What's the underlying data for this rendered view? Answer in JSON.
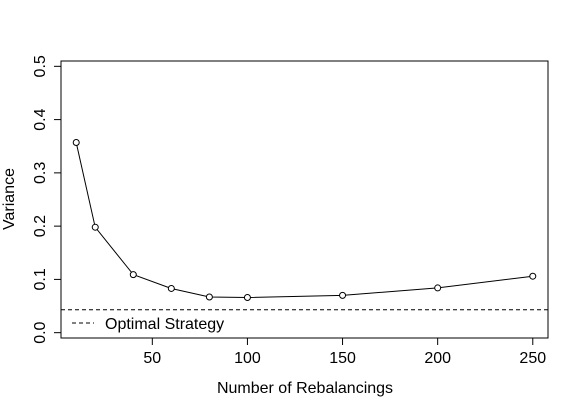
{
  "chart_data": {
    "type": "line",
    "title": "",
    "xlabel": "Number of Rebalancings",
    "ylabel": "Variance",
    "xlim": [
      2,
      258
    ],
    "ylim": [
      -0.01,
      0.51
    ],
    "x_ticks": [
      50,
      100,
      150,
      200,
      250
    ],
    "y_ticks": [
      0.0,
      0.1,
      0.2,
      0.3,
      0.4,
      0.5
    ],
    "x_tick_labels": [
      "50",
      "100",
      "150",
      "200",
      "250"
    ],
    "y_tick_labels": [
      "0.0",
      "0.1",
      "0.2",
      "0.3",
      "0.4",
      "0.5"
    ],
    "grid": false,
    "legend_position": "bottom-left",
    "series": [
      {
        "style": "line-with-open-circles",
        "color": "#000000",
        "x": [
          10,
          20,
          40,
          60,
          80,
          100,
          150,
          200,
          250
        ],
        "y": [
          0.357,
          0.198,
          0.109,
          0.083,
          0.067,
          0.066,
          0.07,
          0.084,
          0.106
        ]
      }
    ],
    "reference_lines": [
      {
        "name": "Optimal Strategy",
        "orientation": "horizontal",
        "y": 0.043,
        "style": "dashed",
        "color": "#000000"
      }
    ]
  }
}
